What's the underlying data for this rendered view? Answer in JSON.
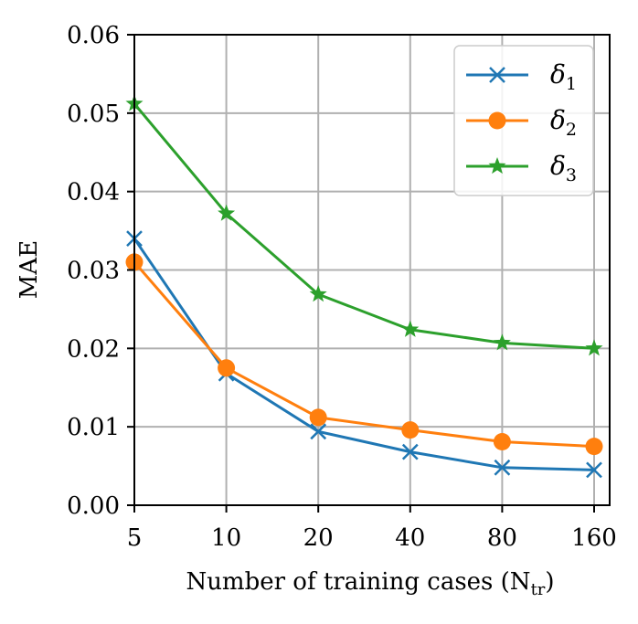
{
  "chart_data": {
    "type": "line",
    "categories": [
      "5",
      "10",
      "20",
      "40",
      "80",
      "160"
    ],
    "xlabel_main": "Number of training cases (N",
    "xlabel_sub": "tr",
    "xlabel_close": ")",
    "ylabel": "MAE",
    "ylim": [
      0,
      0.06
    ],
    "yticks": [
      "0.00",
      "0.01",
      "0.02",
      "0.03",
      "0.04",
      "0.05",
      "0.06"
    ],
    "grid": true,
    "legend_position": "top-right",
    "series": [
      {
        "name": "δ",
        "sub": "1",
        "marker": "x",
        "color": "#1f77b4",
        "values": [
          0.034,
          0.0168,
          0.0094,
          0.0068,
          0.0048,
          0.0045
        ]
      },
      {
        "name": "δ",
        "sub": "2",
        "marker": "circle",
        "color": "#ff7f0e",
        "values": [
          0.031,
          0.0175,
          0.0112,
          0.0096,
          0.0081,
          0.0075
        ]
      },
      {
        "name": "δ",
        "sub": "3",
        "marker": "star",
        "color": "#2ca02c",
        "values": [
          0.0512,
          0.0372,
          0.0269,
          0.0224,
          0.0207,
          0.02
        ]
      }
    ]
  }
}
